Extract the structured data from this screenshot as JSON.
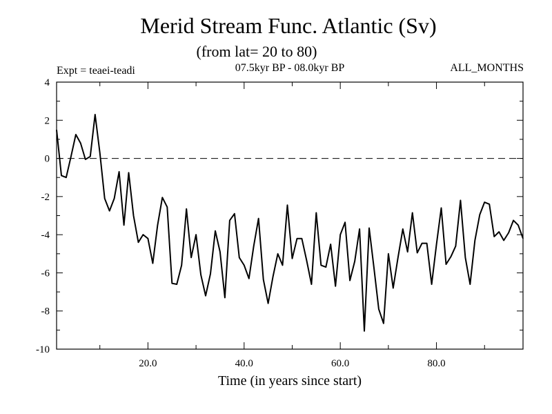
{
  "chart_data": {
    "type": "line",
    "title": "Merid Stream Func. Atlantic (Sv)",
    "subtitle": "(from lat= 20 to 80)",
    "experiment": "Expt = teaei-teadi",
    "period": "07.5kyr BP - 08.0kyr BP",
    "season": "ALL_MONTHS",
    "xlabel": "Time (in years since start)",
    "ylabel": "",
    "xlim": [
      1,
      98
    ],
    "ylim": [
      -10,
      4
    ],
    "xticks": [
      20,
      40,
      60,
      80
    ],
    "xtick_labels": [
      "20.0",
      "40.0",
      "60.0",
      "80.0"
    ],
    "yticks": [
      -10,
      -8,
      -6,
      -4,
      -2,
      0,
      2,
      4
    ],
    "ytick_labels": [
      "-10",
      "-8",
      "-6",
      "-4",
      "-2",
      "0",
      "2",
      "4"
    ],
    "reference_line": 0,
    "x": [
      1,
      2,
      3,
      4,
      5,
      6,
      7,
      8,
      9,
      10,
      11,
      12,
      13,
      14,
      15,
      16,
      17,
      18,
      19,
      20,
      21,
      22,
      23,
      24,
      25,
      26,
      27,
      28,
      29,
      30,
      31,
      32,
      33,
      34,
      35,
      36,
      37,
      38,
      39,
      40,
      41,
      42,
      43,
      44,
      45,
      46,
      47,
      48,
      49,
      50,
      51,
      52,
      53,
      54,
      55,
      56,
      57,
      58,
      59,
      60,
      61,
      62,
      63,
      64,
      65,
      66,
      67,
      68,
      69,
      70,
      71,
      72,
      73,
      74,
      75,
      76,
      77,
      78,
      79,
      80,
      81,
      82,
      83,
      84,
      85,
      86,
      87,
      88,
      89,
      90,
      91,
      92,
      93,
      94,
      95,
      96,
      97,
      98
    ],
    "values": [
      1.5,
      -0.9,
      -1.0,
      0.1,
      1.25,
      0.8,
      -0.05,
      0.1,
      2.3,
      0.3,
      -2.1,
      -2.75,
      -2.1,
      -0.7,
      -3.5,
      -0.75,
      -3.0,
      -4.4,
      -4.0,
      -4.2,
      -5.5,
      -3.5,
      -2.05,
      -2.55,
      -6.55,
      -6.6,
      -5.6,
      -2.65,
      -5.2,
      -4.0,
      -6.1,
      -7.2,
      -6.05,
      -3.8,
      -4.9,
      -7.3,
      -3.25,
      -2.9,
      -5.2,
      -5.6,
      -6.3,
      -4.6,
      -3.15,
      -6.35,
      -7.6,
      -6.2,
      -5.0,
      -5.6,
      -2.45,
      -5.25,
      -4.2,
      -4.2,
      -5.35,
      -6.6,
      -2.85,
      -5.6,
      -5.7,
      -4.5,
      -6.7,
      -4.0,
      -3.35,
      -6.4,
      -5.4,
      -3.7,
      -9.05,
      -3.65,
      -5.75,
      -7.9,
      -8.65,
      -5.0,
      -6.8,
      -5.2,
      -3.7,
      -4.9,
      -2.85,
      -4.95,
      -4.45,
      -4.45,
      -6.6,
      -4.5,
      -2.6,
      -5.55,
      -5.15,
      -4.6,
      -2.2,
      -5.2,
      -6.6,
      -4.3,
      -2.95,
      -2.3,
      -2.4,
      -4.1,
      -3.85,
      -4.3,
      -3.9,
      -3.25,
      -3.5,
      -4.2
    ]
  }
}
